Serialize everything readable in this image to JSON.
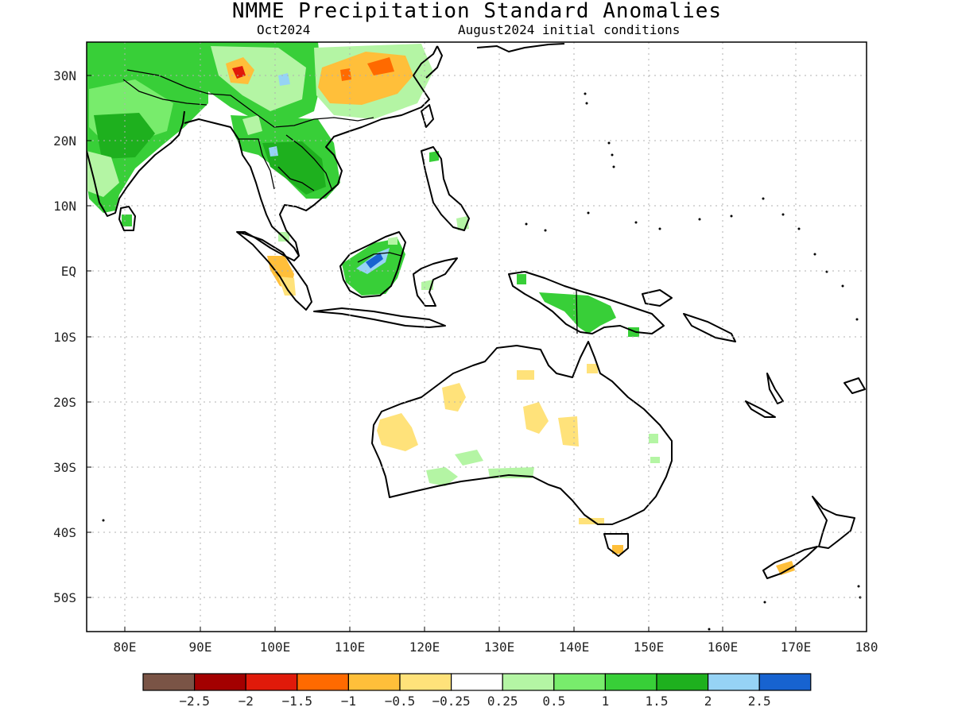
{
  "title": "NMME Precipitation Standard Anomalies",
  "target_month": "Oct2024",
  "init_label": "August2024 initial conditions",
  "lat_labels": [
    "30N",
    "20N",
    "10N",
    "EQ",
    "10S",
    "20S",
    "30S",
    "40S",
    "50S"
  ],
  "lon_labels": [
    "80E",
    "90E",
    "100E",
    "110E",
    "120E",
    "130E",
    "140E",
    "150E",
    "160E",
    "170E",
    "180"
  ],
  "colorbar": {
    "colors": [
      "#7a5446",
      "#a30000",
      "#e01a0a",
      "#ff6a00",
      "#ffbf3a",
      "#ffe27a",
      "#ffffff",
      "#b4f5a4",
      "#78ec6c",
      "#38cf38",
      "#1eb01e",
      "#96d3f5",
      "#1763d0"
    ],
    "labels": [
      "−2.5",
      "−2",
      "−1.5",
      "−1",
      "−0.5",
      "−0.25",
      "0.25",
      "0.5",
      "1",
      "1.5",
      "2",
      "2.5"
    ]
  },
  "colors": {
    "light_green": "#b4f5a4",
    "green": "#78ec6c",
    "mid_green": "#38cf38",
    "dark_green": "#1eb01e",
    "light_blue": "#96d3f5",
    "blue": "#1763d0",
    "pale_yellow": "#ffe27a",
    "yellow_orange": "#ffbf3a",
    "orange": "#ff6a00",
    "red": "#e01a0a"
  }
}
